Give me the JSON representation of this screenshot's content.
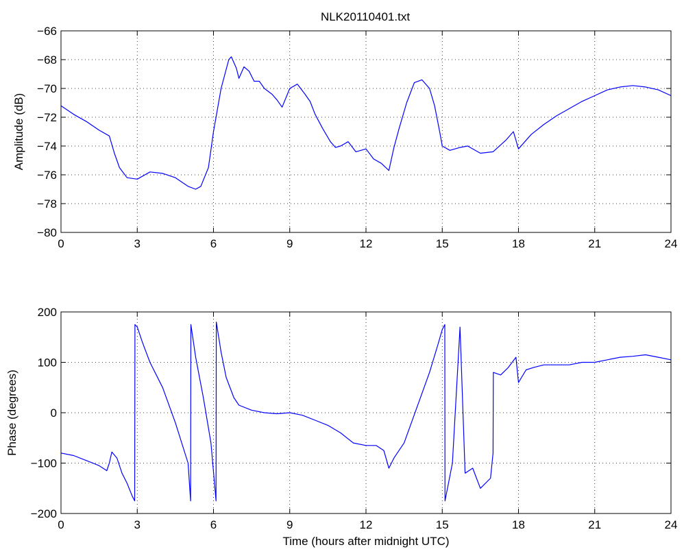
{
  "figure": {
    "title": "NLK20110401.txt",
    "series_color": "#0000ff"
  },
  "chart_data": [
    {
      "type": "line",
      "title": "NLK20110401.txt",
      "xlabel": "",
      "ylabel": "Amplitude (dB)",
      "xlim": [
        0,
        24
      ],
      "ylim": [
        -80,
        -66
      ],
      "xticks": [
        0,
        3,
        6,
        9,
        12,
        15,
        18,
        21,
        24
      ],
      "yticks": [
        -80,
        -78,
        -76,
        -74,
        -72,
        -70,
        -68,
        -66
      ],
      "grid": true,
      "series": [
        {
          "x": [
            0,
            0.5,
            1.0,
            1.5,
            1.9,
            2.1,
            2.3,
            2.6,
            3.0,
            3.5,
            4.0,
            4.5,
            5.0,
            5.3,
            5.5,
            5.8,
            6.0,
            6.3,
            6.6,
            6.7,
            6.9,
            7.0,
            7.2,
            7.4,
            7.6,
            7.8,
            8.0,
            8.3,
            8.5,
            8.7,
            9.0,
            9.3,
            9.6,
            9.8,
            10.0,
            10.3,
            10.6,
            10.8,
            11.0,
            11.3,
            11.6,
            12.0,
            12.3,
            12.6,
            12.9,
            13.1,
            13.3,
            13.6,
            13.9,
            14.2,
            14.5,
            14.7,
            14.9,
            15.0,
            15.3,
            15.7,
            16.0,
            16.5,
            17.0,
            17.5,
            17.8,
            18.0,
            18.5,
            19.0,
            19.5,
            20.0,
            20.5,
            21.0,
            21.5,
            22.0,
            22.5,
            23.0,
            23.5,
            24.0
          ],
          "y": [
            -71.2,
            -71.8,
            -72.3,
            -72.9,
            -73.3,
            -74.5,
            -75.5,
            -76.2,
            -76.3,
            -75.8,
            -75.9,
            -76.2,
            -76.8,
            -77.0,
            -76.8,
            -75.5,
            -73.0,
            -70.0,
            -68.0,
            -67.8,
            -68.6,
            -69.3,
            -68.5,
            -68.8,
            -69.5,
            -69.5,
            -70.0,
            -70.4,
            -70.8,
            -71.3,
            -70.0,
            -69.7,
            -70.4,
            -70.9,
            -71.8,
            -72.8,
            -73.7,
            -74.1,
            -74.0,
            -73.7,
            -74.4,
            -74.2,
            -74.9,
            -75.2,
            -75.7,
            -74.1,
            -72.8,
            -71.0,
            -69.6,
            -69.4,
            -70.0,
            -71.2,
            -73.0,
            -74.0,
            -74.3,
            -74.1,
            -74.0,
            -74.5,
            -74.4,
            -73.6,
            -73.0,
            -74.2,
            -73.2,
            -72.5,
            -71.9,
            -71.4,
            -70.9,
            -70.5,
            -70.1,
            -69.9,
            -69.8,
            -69.9,
            -70.1,
            -70.5
          ]
        }
      ]
    },
    {
      "type": "line",
      "title": "",
      "xlabel": "Time (hours after midnight UTC)",
      "ylabel": "Phase (degrees)",
      "xlim": [
        0,
        24
      ],
      "ylim": [
        -200,
        200
      ],
      "xticks": [
        0,
        3,
        6,
        9,
        12,
        15,
        18,
        21,
        24
      ],
      "yticks": [
        -200,
        -100,
        0,
        100,
        200
      ],
      "grid": true,
      "series": [
        {
          "x": [
            0,
            0.5,
            1.0,
            1.5,
            1.8,
            1.9,
            2.0,
            2.2,
            2.4,
            2.6,
            2.8,
            2.9,
            2.91,
            3.0,
            3.2,
            3.5,
            4.0,
            4.5,
            5.0,
            5.1,
            5.11,
            5.3,
            5.6,
            5.9,
            6.1,
            6.11,
            6.3,
            6.5,
            6.8,
            7.0,
            7.5,
            8.0,
            8.5,
            9.0,
            9.5,
            10.0,
            10.5,
            11.0,
            11.5,
            12.0,
            12.4,
            12.7,
            12.9,
            13.1,
            13.5,
            14.0,
            14.5,
            14.8,
            15.0,
            15.1,
            15.11,
            15.4,
            15.7,
            15.9,
            16.2,
            16.5,
            16.9,
            17.0,
            17.01,
            17.3,
            17.6,
            17.9,
            18.0,
            18.3,
            18.6,
            19.0,
            19.5,
            20.0,
            20.5,
            21.0,
            21.5,
            22.0,
            22.5,
            23.0,
            23.5,
            24.0
          ],
          "y": [
            -80,
            -85,
            -95,
            -105,
            -115,
            -100,
            -78,
            -90,
            -120,
            -140,
            -165,
            -175,
            175,
            170,
            140,
            100,
            50,
            -20,
            -100,
            -175,
            175,
            110,
            30,
            -60,
            -175,
            180,
            120,
            70,
            30,
            15,
            5,
            0,
            -2,
            0,
            -5,
            -15,
            -25,
            -40,
            -60,
            -65,
            -65,
            -75,
            -110,
            -90,
            -60,
            10,
            80,
            130,
            165,
            175,
            -175,
            -100,
            170,
            -120,
            -110,
            -150,
            -130,
            -80,
            80,
            75,
            90,
            110,
            60,
            85,
            90,
            95,
            95,
            95,
            100,
            100,
            105,
            110,
            112,
            115,
            110,
            105
          ]
        }
      ]
    }
  ]
}
